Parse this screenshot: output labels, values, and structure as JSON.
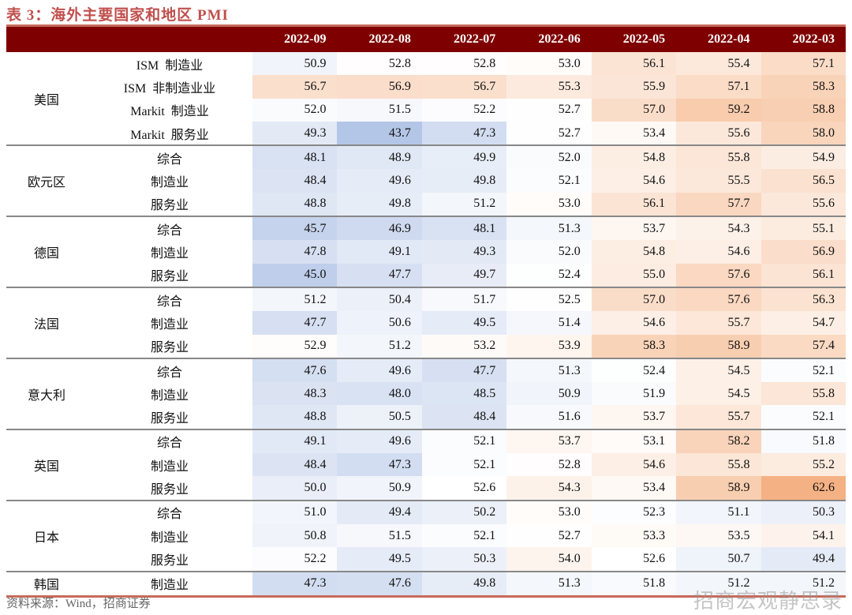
{
  "title": "表 3：海外主要国家和地区 PMI",
  "source": "资料来源：Wind，招商证券",
  "watermark": "招商宏观静思录",
  "colors": {
    "header_bg": "#7f0000",
    "low": "#b4c6e7",
    "mid": "#ffffff",
    "high": "#f4b183",
    "title": "#c0504d"
  },
  "chart_data": {
    "type": "table",
    "heatmap": true,
    "columns": [
      "2022-09",
      "2022-08",
      "2022-07",
      "2022-06",
      "2022-05",
      "2022-04",
      "2022-03"
    ],
    "groups": [
      {
        "region": "美国",
        "rows": [
          {
            "label": "ISM  制造业",
            "values": [
              "50.9",
              "52.8",
              "52.8",
              "53.0",
              "56.1",
              "55.4",
              "57.1"
            ]
          },
          {
            "label": "ISM  非制造业业",
            "values": [
              "56.7",
              "56.9",
              "56.7",
              "55.3",
              "55.9",
              "57.1",
              "58.3"
            ]
          },
          {
            "label": "Markit  制造业",
            "values": [
              "52.0",
              "51.5",
              "52.2",
              "52.7",
              "57.0",
              "59.2",
              "58.8"
            ]
          },
          {
            "label": "Markit  服务业",
            "values": [
              "49.3",
              "43.7",
              "47.3",
              "52.7",
              "53.4",
              "55.6",
              "58.0"
            ]
          }
        ]
      },
      {
        "region": "欧元区",
        "rows": [
          {
            "label": "综合",
            "values": [
              "48.1",
              "48.9",
              "49.9",
              "52.0",
              "54.8",
              "55.8",
              "54.9"
            ]
          },
          {
            "label": "制造业",
            "values": [
              "48.4",
              "49.6",
              "49.8",
              "52.1",
              "54.6",
              "55.5",
              "56.5"
            ]
          },
          {
            "label": "服务业",
            "values": [
              "48.8",
              "49.8",
              "51.2",
              "53.0",
              "56.1",
              "57.7",
              "55.6"
            ]
          }
        ]
      },
      {
        "region": "德国",
        "rows": [
          {
            "label": "综合",
            "values": [
              "45.7",
              "46.9",
              "48.1",
              "51.3",
              "53.7",
              "54.3",
              "55.1"
            ]
          },
          {
            "label": "制造业",
            "values": [
              "47.8",
              "49.1",
              "49.3",
              "52.0",
              "54.8",
              "54.6",
              "56.9"
            ]
          },
          {
            "label": "服务业",
            "values": [
              "45.0",
              "47.7",
              "49.7",
              "52.4",
              "55.0",
              "57.6",
              "56.1"
            ]
          }
        ]
      },
      {
        "region": "法国",
        "rows": [
          {
            "label": "综合",
            "values": [
              "51.2",
              "50.4",
              "51.7",
              "52.5",
              "57.0",
              "57.6",
              "56.3"
            ]
          },
          {
            "label": "制造业",
            "values": [
              "47.7",
              "50.6",
              "49.5",
              "51.4",
              "54.6",
              "55.7",
              "54.7"
            ]
          },
          {
            "label": "服务业",
            "values": [
              "52.9",
              "51.2",
              "53.2",
              "53.9",
              "58.3",
              "58.9",
              "57.4"
            ]
          }
        ]
      },
      {
        "region": "意大利",
        "rows": [
          {
            "label": "综合",
            "values": [
              "47.6",
              "49.6",
              "47.7",
              "51.3",
              "52.4",
              "54.5",
              "52.1"
            ]
          },
          {
            "label": "制造业",
            "values": [
              "48.3",
              "48.0",
              "48.5",
              "50.9",
              "51.9",
              "54.5",
              "55.8"
            ]
          },
          {
            "label": "服务业",
            "values": [
              "48.8",
              "50.5",
              "48.4",
              "51.6",
              "53.7",
              "55.7",
              "52.1"
            ]
          }
        ]
      },
      {
        "region": "英国",
        "rows": [
          {
            "label": "综合",
            "values": [
              "49.1",
              "49.6",
              "52.1",
              "53.7",
              "53.1",
              "58.2",
              "51.8"
            ]
          },
          {
            "label": "制造业",
            "values": [
              "48.4",
              "47.3",
              "52.1",
              "52.8",
              "54.6",
              "55.8",
              "55.2"
            ]
          },
          {
            "label": "服务业",
            "values": [
              "50.0",
              "50.9",
              "52.6",
              "54.3",
              "53.4",
              "58.9",
              "62.6"
            ]
          }
        ]
      },
      {
        "region": "日本",
        "rows": [
          {
            "label": "综合",
            "values": [
              "51.0",
              "49.4",
              "50.2",
              "53.0",
              "52.3",
              "51.1",
              "50.3"
            ]
          },
          {
            "label": "制造业",
            "values": [
              "50.8",
              "51.5",
              "52.1",
              "52.7",
              "53.3",
              "53.5",
              "54.1"
            ]
          },
          {
            "label": "服务业",
            "values": [
              "52.2",
              "49.5",
              "50.3",
              "54.0",
              "52.6",
              "50.7",
              "49.4"
            ]
          }
        ]
      },
      {
        "region": "韩国",
        "rows": [
          {
            "label": "制造业",
            "values": [
              "47.3",
              "47.6",
              "49.8",
              "51.3",
              "51.8",
              "51.2",
              "51.2"
            ]
          }
        ]
      }
    ]
  }
}
